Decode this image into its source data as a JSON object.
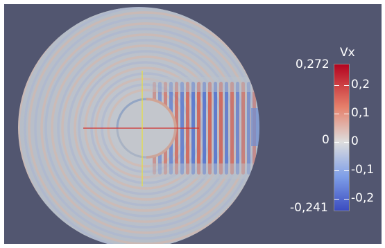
{
  "colorbar": {
    "title": "Vx",
    "max_label": "0,272",
    "min_label": "-0,241",
    "zero_label_left": "0",
    "ticks": [
      "0,2",
      "0,1",
      "0",
      "-0,1",
      "-0,2"
    ],
    "range": [
      -0.241,
      0.272
    ],
    "tick_values": [
      0.2,
      0.1,
      0,
      -0.1,
      -0.2
    ],
    "colors": {
      "high": "#b4041f",
      "mid": "#dddddd",
      "low": "#3b4cc0"
    }
  },
  "scene": {
    "background": "#525670",
    "axis_x_color": "#d0302e",
    "axis_y_color": "#e9e03a",
    "base_field_color": "#b9c1cb"
  }
}
